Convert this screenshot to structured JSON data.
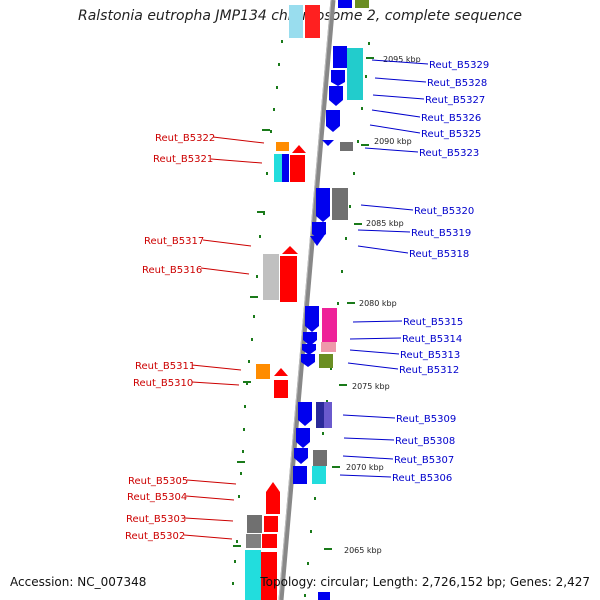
{
  "title": "Ralstonia eutropha JMP134 chromosome 2, complete sequence",
  "footer": {
    "accession": "Accession: NC_007348",
    "summary": "Topology: circular; Length: 2,726,152 bp; Genes: 2,427"
  },
  "colors": {
    "axis": "#888888",
    "tick": "#1a7a1a",
    "plus_label": "#0000cc",
    "minus_label": "#cc0000"
  },
  "scale_labels": [
    "2095 kbp",
    "2090 kbp",
    "2085 kbp",
    "2080 kbp",
    "2075 kbp",
    "2070 kbp",
    "2065 kbp"
  ],
  "right_labels": [
    "Reut_B5329",
    "Reut_B5328",
    "Reut_B5327",
    "Reut_B5326",
    "Reut_B5325",
    "Reut_B5323",
    "Reut_B5320",
    "Reut_B5319",
    "Reut_B5318",
    "Reut_B5315",
    "Reut_B5314",
    "Reut_B5313",
    "Reut_B5312",
    "Reut_B5309",
    "Reut_B5308",
    "Reut_B5307",
    "Reut_B5306"
  ],
  "left_labels": [
    "Reut_B5322",
    "Reut_B5321",
    "Reut_B5317",
    "Reut_B5316",
    "Reut_B5311",
    "Reut_B5310",
    "Reut_B5305",
    "Reut_B5304",
    "Reut_B5303",
    "Reut_B5302"
  ]
}
